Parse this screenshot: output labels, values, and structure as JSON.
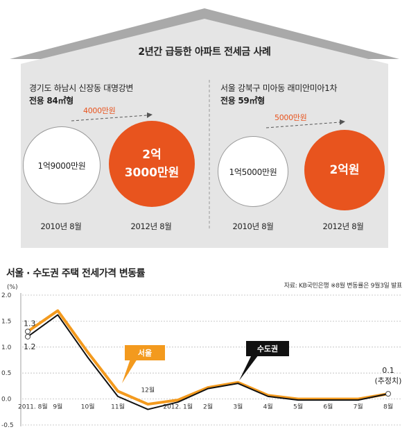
{
  "infographic": {
    "title": "2년간 급등한 아파트 전세금 사례",
    "left": {
      "address": "경기도 하남시 신장동 대명강변",
      "size": "전용 84㎡형",
      "increase": "4000만원",
      "before_value": "1억9000만원",
      "after_value_line1": "2억",
      "after_value_line2": "3000만원",
      "before_date": "2010년 8월",
      "after_date": "2012년 8월"
    },
    "right": {
      "address": "서울 강북구 미아동 래미안미아1차",
      "size": "전용 59㎡형",
      "increase": "5000만원",
      "before_value": "1억5000만원",
      "after_value": "2억원",
      "before_date": "2010년 8월",
      "after_date": "2012년 8월"
    },
    "colors": {
      "accent": "#e8541e",
      "house": "#e5e5e5",
      "roof": "#a9a9a9"
    }
  },
  "chart_section": {
    "title": "서울 · 수도권 주택 전세가격 변동률",
    "source": "자료: KB국민은행   ※8월 변동률은 9월3일 발표"
  },
  "chart_data": {
    "type": "line",
    "unit_label": "(%)",
    "categories": [
      "2011. 8월",
      "9월",
      "10월",
      "11월",
      "12월",
      "2012. 1월",
      "2월",
      "3월",
      "4월",
      "5월",
      "6월",
      "7월",
      "8월"
    ],
    "series": [
      {
        "name": "서울",
        "color": "#f39a1e",
        "values": [
          1.3,
          1.7,
          0.9,
          0.15,
          -0.1,
          -0.02,
          0.22,
          0.32,
          0.07,
          0.0,
          0.0,
          0.0,
          0.1
        ]
      },
      {
        "name": "수도권",
        "color": "#111111",
        "values": [
          1.2,
          1.62,
          0.8,
          0.05,
          -0.2,
          -0.06,
          0.2,
          0.3,
          0.05,
          -0.02,
          -0.02,
          -0.02,
          0.1
        ]
      }
    ],
    "ylim": [
      -0.5,
      2.0
    ],
    "yticks": [
      "2.0",
      "1.5",
      "1.0",
      "0.5",
      "0.0",
      "-0.5"
    ],
    "annotations": {
      "start_seoul": "1.3",
      "start_metro": "1.2",
      "end_value": "0.1",
      "end_note": "(추정치)"
    },
    "grid": "horizontal dashed"
  }
}
